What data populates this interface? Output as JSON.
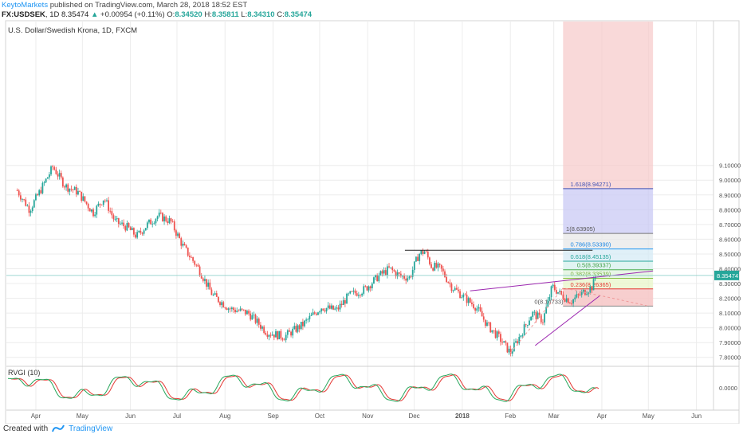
{
  "header": {
    "publisher": "KeytoMarkets",
    "published_text": "published on TradingView.com, March 28, 2018 18:52 EST",
    "symbol": "FX:USDSEK",
    "interval": "1D",
    "last": "8.35474",
    "change_arrow": "▲",
    "change": "+0.00954 (+0.11%)",
    "o_label": "O:",
    "o_value": "8.34520",
    "h_label": "H:",
    "h_value": "8.35811",
    "l_label": "L:",
    "l_value": "8.34310",
    "c_label": "C:",
    "c_value": "8.35474"
  },
  "legend_title": "U.S. Dollar/Swedish Krona, 1D, FXCM",
  "indicator_label": "RVGI (10)",
  "footer": {
    "created_with": "Created with",
    "brand": "TradingView"
  },
  "colors": {
    "up": "#26a69a",
    "down": "#ef5350",
    "grid": "#ececec",
    "axis_text": "#555555",
    "fib_red": "#f6c9c9",
    "fib_blue": "#c9c9f4",
    "fib_grey": "#e8e8e8",
    "purple": "#9c27b0",
    "rvgi_green": "#26a65b",
    "rvgi_red": "#e53935"
  },
  "chart_data": {
    "type": "candlestick",
    "title": "U.S. Dollar/Swedish Krona, 1D, FXCM",
    "ylim": [
      7.75,
      10.08
    ],
    "y_ticks": [
      "9.10000",
      "9.00000",
      "8.90000",
      "8.80000",
      "8.70000",
      "8.60000",
      "8.50000",
      "8.40000",
      "8.30000",
      "8.20000",
      "8.10000",
      "8.00000",
      "7.90000",
      "7.80000"
    ],
    "x_ticks": [
      "Apr",
      "May",
      "Jun",
      "Jul",
      "Aug",
      "Sep",
      "Oct",
      "Nov",
      "Dec",
      "2018",
      "Feb",
      "Mar",
      "Apr",
      "May",
      "Jun"
    ],
    "last_price": "8.35474",
    "price_path": [
      [
        "2017-03-20",
        8.93
      ],
      [
        "2017-03-28",
        8.8
      ],
      [
        "2017-04-05",
        8.95
      ],
      [
        "2017-04-12",
        9.09
      ],
      [
        "2017-04-20",
        8.96
      ],
      [
        "2017-04-28",
        8.92
      ],
      [
        "2017-05-08",
        8.78
      ],
      [
        "2017-05-15",
        8.88
      ],
      [
        "2017-05-22",
        8.72
      ],
      [
        "2017-05-30",
        8.68
      ],
      [
        "2017-06-05",
        8.62
      ],
      [
        "2017-06-12",
        8.7
      ],
      [
        "2017-06-19",
        8.76
      ],
      [
        "2017-06-27",
        8.72
      ],
      [
        "2017-07-05",
        8.55
      ],
      [
        "2017-07-15",
        8.4
      ],
      [
        "2017-07-24",
        8.22
      ],
      [
        "2017-08-04",
        8.13
      ],
      [
        "2017-08-16",
        8.1
      ],
      [
        "2017-08-28",
        7.97
      ],
      [
        "2017-09-08",
        7.94
      ],
      [
        "2017-09-20",
        8.02
      ],
      [
        "2017-10-02",
        8.14
      ],
      [
        "2017-10-12",
        8.12
      ],
      [
        "2017-10-20",
        8.22
      ],
      [
        "2017-10-30",
        8.26
      ],
      [
        "2017-11-08",
        8.35
      ],
      [
        "2017-11-15",
        8.4
      ],
      [
        "2017-11-22",
        8.35
      ],
      [
        "2017-11-28",
        8.34
      ],
      [
        "2017-12-04",
        8.5
      ],
      [
        "2017-12-08",
        8.52
      ],
      [
        "2017-12-12",
        8.42
      ],
      [
        "2017-12-18",
        8.4
      ],
      [
        "2017-12-25",
        8.28
      ],
      [
        "2018-01-03",
        8.2
      ],
      [
        "2018-01-10",
        8.14
      ],
      [
        "2018-01-17",
        8.02
      ],
      [
        "2018-01-25",
        7.93
      ],
      [
        "2018-02-01",
        7.83
      ],
      [
        "2018-02-08",
        7.96
      ],
      [
        "2018-02-15",
        8.1
      ],
      [
        "2018-02-22",
        8.05
      ],
      [
        "2018-02-28",
        8.28
      ],
      [
        "2018-03-06",
        8.22
      ],
      [
        "2018-03-12",
        8.18
      ],
      [
        "2018-03-20",
        8.24
      ],
      [
        "2018-03-26",
        8.28
      ],
      [
        "2018-03-28",
        8.355
      ]
    ],
    "fibonacci": [
      {
        "label": "0(8.14733)",
        "value": 8.14733
      },
      {
        "label": "0.236(8.26365)",
        "value": 8.26365
      },
      {
        "label": "0.382(8.33539)",
        "value": 8.33539
      },
      {
        "label": "0.5(8.39337)",
        "value": 8.39337
      },
      {
        "label": "0.618(8.45135)",
        "value": 8.45135
      },
      {
        "label": "0.786(8.53390)",
        "value": 8.5339
      },
      {
        "label": "1(8.63905)",
        "value": 8.63905
      },
      {
        "label": "1.618(8.94271)",
        "value": 8.94271
      }
    ],
    "rvgi": {
      "label": "RVGI (10)",
      "zero_label": "0.0000"
    }
  }
}
